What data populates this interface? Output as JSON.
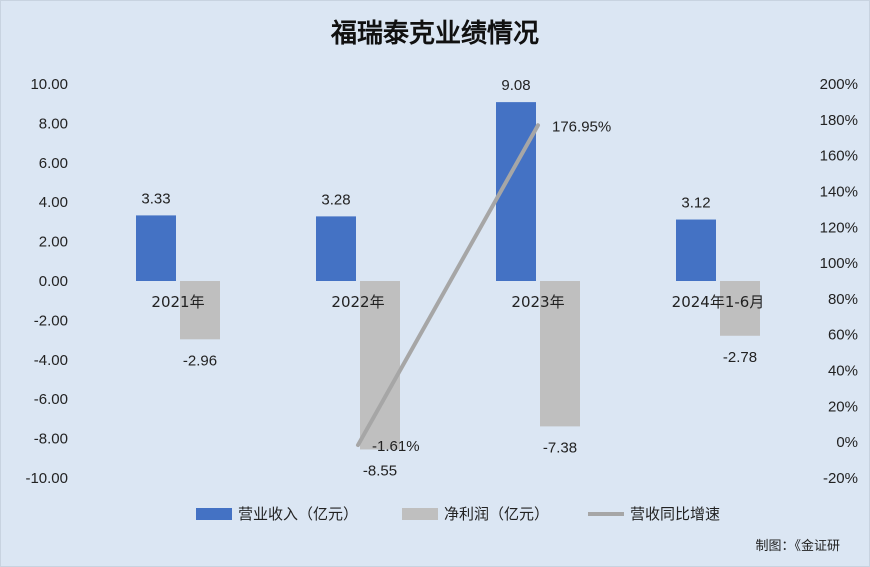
{
  "chart_data": {
    "type": "bar",
    "title": "福瑞泰克业绩情况",
    "categories": [
      "2021年",
      "2022年",
      "2023年",
      "2024年1-6月"
    ],
    "series": [
      {
        "name": "营业收入（亿元）",
        "type": "bar",
        "axis": "left",
        "values": [
          3.33,
          3.28,
          9.08,
          3.12
        ],
        "color": "#4472c4"
      },
      {
        "name": "净利润（亿元）",
        "type": "bar",
        "axis": "left",
        "values": [
          -2.96,
          -8.55,
          -7.38,
          -2.78
        ],
        "color": "#bfbfbf"
      },
      {
        "name": "营收同比增速",
        "type": "line",
        "axis": "right",
        "values": [
          null,
          -1.61,
          176.95,
          null
        ],
        "labels": [
          "",
          "-1.61%",
          "176.95%",
          ""
        ],
        "color": "#a6a6a6"
      }
    ],
    "left_axis": {
      "min": -10,
      "max": 10,
      "step": 2,
      "ticks": [
        "10.00",
        "8.00",
        "6.00",
        "4.00",
        "2.00",
        "0.00",
        "-2.00",
        "-4.00",
        "-6.00",
        "-8.00",
        "-10.00"
      ]
    },
    "right_axis": {
      "min": -20,
      "max": 200,
      "step": 20,
      "ticks": [
        "200%",
        "180%",
        "160%",
        "140%",
        "120%",
        "100%",
        "80%",
        "60%",
        "40%",
        "20%",
        "0%",
        "-20%"
      ]
    },
    "bar_labels": {
      "revenue": [
        "3.33",
        "3.28",
        "9.08",
        "3.12"
      ],
      "profit": [
        "-2.96",
        "-8.55",
        "-7.38",
        "-2.78"
      ]
    },
    "legend_position": "bottom",
    "grid": false
  },
  "credit": "制图：《金证研"
}
